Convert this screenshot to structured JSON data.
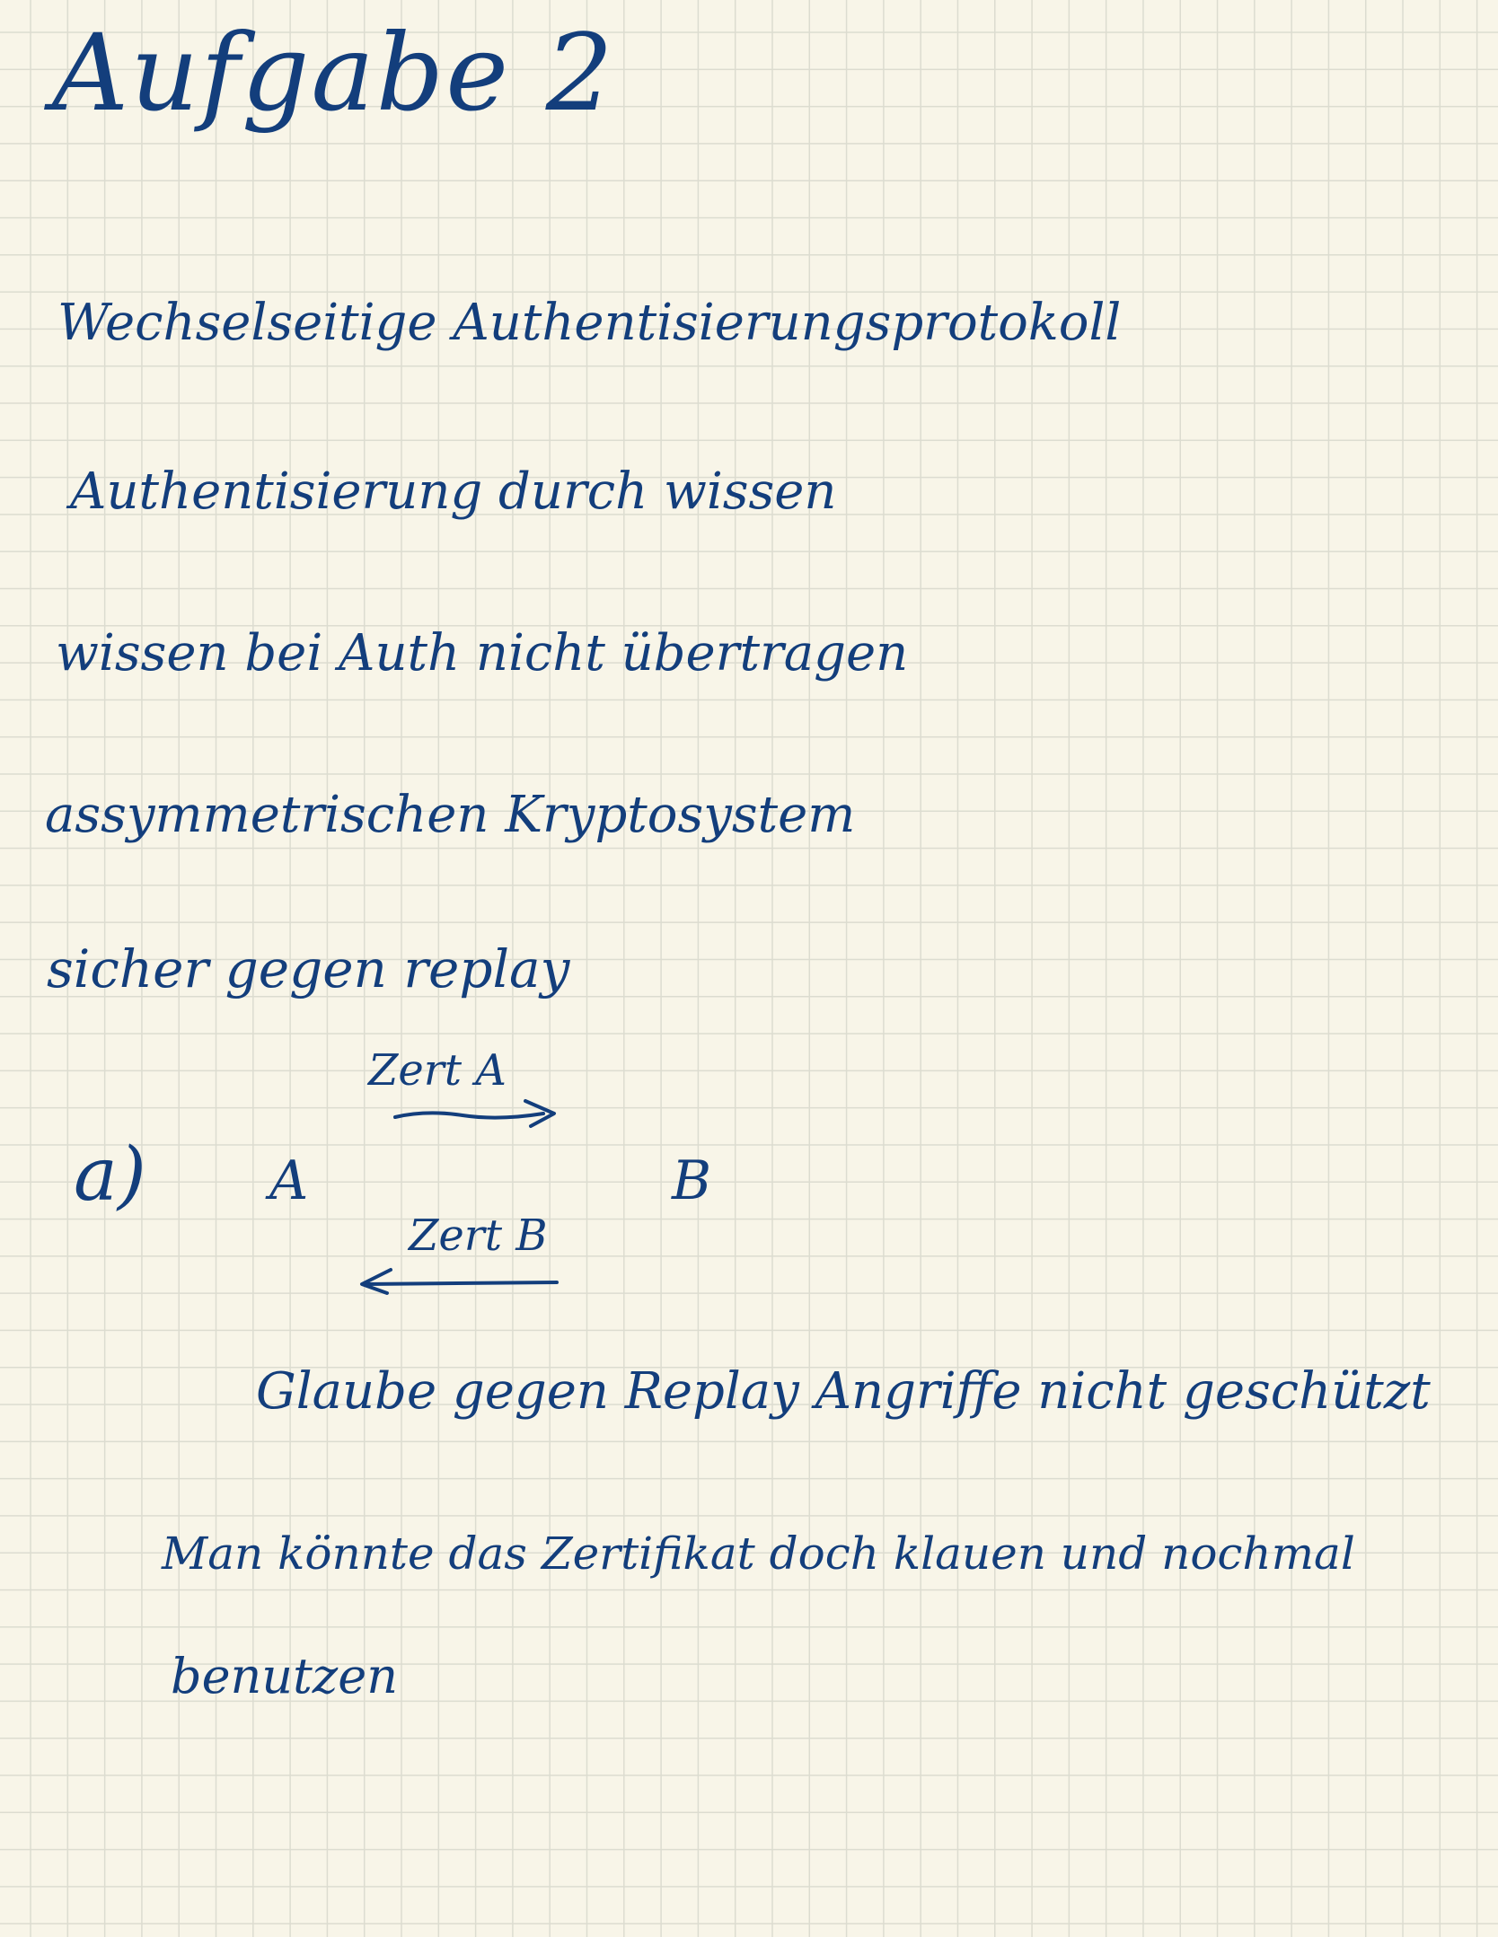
{
  "title": "Aufgabe 2",
  "notes": {
    "line1": "Wechselseitige Authentisierungsprotokoll",
    "line2": "Authentisierung durch wissen",
    "line3": "wissen bei Auth nicht übertragen",
    "line4": "assymmetrischen Kryptosystem",
    "line5": "sicher gegen replay"
  },
  "part_a": {
    "label": "a)",
    "party_a": "A",
    "party_b": "B",
    "message_a_to_b": "Zert A",
    "message_b_to_a": "Zert B",
    "conclusion_1": "Glaube gegen Replay Angriffe nicht geschützt",
    "conclusion_2": "Man könnte das Zertifikat doch klauen und nochmal",
    "conclusion_3": "benutzen"
  },
  "colors": {
    "ink": "#133e7c",
    "paper": "#f8f5e8",
    "grid": "#dcdcd0"
  }
}
